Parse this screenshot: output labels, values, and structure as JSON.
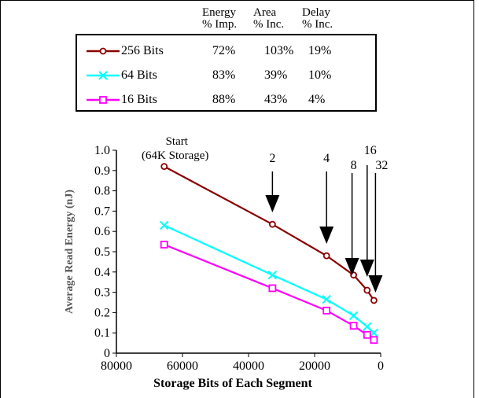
{
  "legend_table": {
    "headers": [
      [
        "Energy",
        "% Imp."
      ],
      [
        "Area",
        "% Inc."
      ],
      [
        "Delay",
        "% Inc."
      ]
    ],
    "rows": [
      {
        "name": "256 Bits",
        "energy": "72%",
        "area": "103%",
        "delay": "19%",
        "color": "#8b0000",
        "marker": "circle"
      },
      {
        "name": "64 Bits",
        "energy": "83%",
        "area": "39%",
        "delay": "10%",
        "color": "#00ffff",
        "marker": "x"
      },
      {
        "name": "16 Bits",
        "energy": "88%",
        "area": "43%",
        "delay": "4%",
        "color": "#ff00ff",
        "marker": "square"
      }
    ]
  },
  "chart_data": {
    "type": "line",
    "xlabel": "Storage Bits of Each Segment",
    "ylabel": "Average Read Energy (nJ)",
    "xlim": [
      80000,
      0
    ],
    "ylim": [
      0,
      1.0
    ],
    "x_ticks": [
      80000,
      60000,
      40000,
      20000,
      0
    ],
    "y_ticks": [
      0,
      0.1,
      0.2,
      0.3,
      0.4,
      0.5,
      0.6,
      0.7,
      0.8,
      0.9,
      1.0
    ],
    "x": [
      65536,
      32768,
      16384,
      8192,
      4096,
      2048
    ],
    "series": [
      {
        "name": "256 Bits",
        "color": "#8b0000",
        "marker": "circle",
        "values": [
          0.92,
          0.635,
          0.48,
          0.385,
          0.31,
          0.26
        ]
      },
      {
        "name": "64 Bits",
        "color": "#00ffff",
        "marker": "x",
        "values": [
          0.63,
          0.385,
          0.265,
          0.185,
          0.13,
          0.1
        ]
      },
      {
        "name": "16 Bits",
        "color": "#ff00ff",
        "marker": "square",
        "values": [
          0.535,
          0.32,
          0.21,
          0.135,
          0.09,
          0.065
        ]
      }
    ],
    "annotations": [
      {
        "text": "Start",
        "x": 65536
      },
      {
        "text": "(64K Storage)",
        "x": 65536
      },
      {
        "text": "2",
        "x": 32768
      },
      {
        "text": "4",
        "x": 16384
      },
      {
        "text": "8",
        "x": 8192
      },
      {
        "text": "16",
        "x": 4096
      },
      {
        "text": "32",
        "x": 2048
      }
    ]
  }
}
